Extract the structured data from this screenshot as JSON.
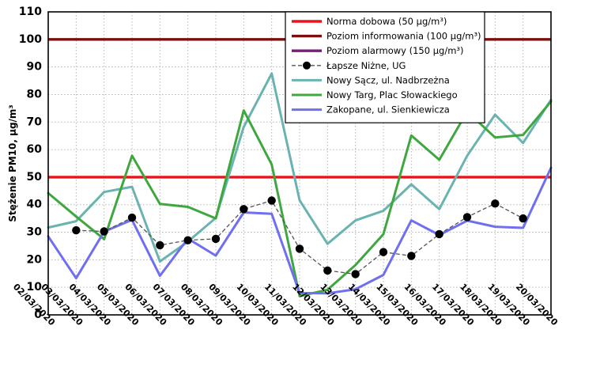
{
  "chart_data": {
    "type": "line",
    "ylabel": "Stężenie PM10, µg/m³",
    "ylim": [
      0,
      110
    ],
    "yticks": [
      0,
      10,
      20,
      30,
      40,
      50,
      60,
      70,
      80,
      90,
      100,
      110
    ],
    "grid": true,
    "legend_position": "top-right",
    "categories": [
      "02/03/2020",
      "03/03/2020",
      "04/03/2020",
      "05/03/2020",
      "06/03/2020",
      "07/03/2020",
      "08/03/2020",
      "09/03/2020",
      "10/03/2020",
      "11/03/2020",
      "12/03/2020",
      "13/03/2020",
      "14/03/2020",
      "15/03/2020",
      "16/03/2020",
      "17/03/2020",
      "18/03/2020",
      "19/03/2020",
      "20/03/2020"
    ],
    "reference_lines": [
      {
        "name": "Norma dobowa (50 µg/m³)",
        "value": 50,
        "color": "#e8131b"
      },
      {
        "name": "Poziom informowania (100 µg/m³)",
        "value": 100,
        "color": "#7a0f0f"
      },
      {
        "name": "Poziom alarmowy (150 µg/m³)",
        "value": 150,
        "color": "#7b1a7b"
      }
    ],
    "series": [
      {
        "name": "Łapsze Niżne, UG",
        "color": "#555555",
        "style": "dashed-markers",
        "values": [
          null,
          30.7,
          30.3,
          35.3,
          25.3,
          27.1,
          27.6,
          38.4,
          41.5,
          24.0,
          16.1,
          14.8,
          22.8,
          21.4,
          29.3,
          35.5,
          40.4,
          35.0,
          null
        ]
      },
      {
        "name": "Nowy Sącz, ul. Nadbrzeżna",
        "color": "#6ab3b0",
        "style": "solid",
        "values": [
          31.7,
          34.0,
          44.6,
          46.5,
          19.4,
          26.6,
          35.2,
          68.2,
          87.6,
          41.6,
          25.8,
          34.3,
          37.8,
          47.4,
          38.4,
          57.8,
          72.7,
          62.4,
          78.1
        ]
      },
      {
        "name": "Nowy Targ, Plac Słowackiego",
        "color": "#3fa73f",
        "style": "solid",
        "values": [
          44.2,
          35.7,
          27.5,
          57.8,
          40.3,
          39.2,
          35.0,
          74.2,
          54.6,
          6.8,
          9.1,
          18.1,
          29.3,
          65.1,
          56.3,
          73.8,
          64.4,
          65.3,
          77.5
        ]
      },
      {
        "name": "Zakopane, ul. Sienkiewicza",
        "color": "#6f6ff0",
        "style": "solid",
        "values": [
          28.5,
          13.3,
          30.2,
          34.5,
          14.2,
          27.7,
          21.5,
          37.2,
          36.7,
          7.9,
          7.8,
          9.3,
          14.5,
          34.3,
          29.0,
          34.2,
          32.0,
          31.6,
          53.4
        ]
      }
    ]
  }
}
